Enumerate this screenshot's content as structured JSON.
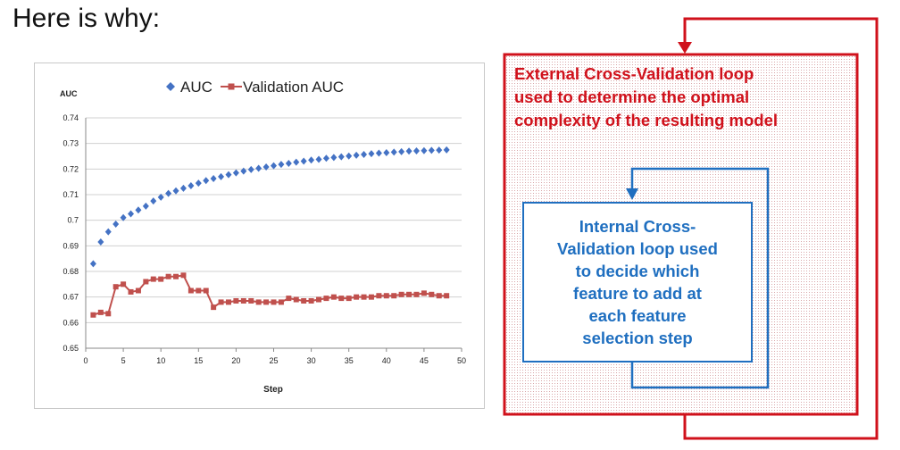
{
  "heading": "Here is why:",
  "colors": {
    "auc": "#4472c4",
    "validation": "#c0504d",
    "outer_loop": "#d0111b",
    "inner_loop": "#1f6fc0"
  },
  "chart_data": {
    "type": "line",
    "title": "",
    "xlabel": "Step",
    "ylabel": "AUC",
    "xlim": [
      0,
      50
    ],
    "ylim": [
      0.65,
      0.74
    ],
    "xticks": [
      0,
      5,
      10,
      15,
      20,
      25,
      30,
      35,
      40,
      45,
      50
    ],
    "yticks": [
      0.65,
      0.66,
      0.67,
      0.68,
      0.69,
      0.7,
      0.71,
      0.72,
      0.73,
      0.74
    ],
    "xtick_labels": [
      "0",
      "5",
      "10",
      "15",
      "20",
      "25",
      "30",
      "35",
      "40",
      "45",
      "50"
    ],
    "ytick_labels": [
      "0.65",
      "0.66",
      "0.67",
      "0.68",
      "0.69",
      "0.7",
      "0.71",
      "0.72",
      "0.73",
      "0.74"
    ],
    "grid": "horizontal",
    "legend": "top",
    "x": [
      1,
      2,
      3,
      4,
      5,
      6,
      7,
      8,
      9,
      10,
      11,
      12,
      13,
      14,
      15,
      16,
      17,
      18,
      19,
      20,
      21,
      22,
      23,
      24,
      25,
      26,
      27,
      28,
      29,
      30,
      31,
      32,
      33,
      34,
      35,
      36,
      37,
      38,
      39,
      40,
      41,
      42,
      43,
      44,
      45,
      46,
      47,
      48
    ],
    "series": [
      {
        "name": "AUC",
        "marker": "diamond",
        "line": false,
        "values": [
          0.683,
          0.6915,
          0.6955,
          0.6985,
          0.701,
          0.7025,
          0.704,
          0.7055,
          0.7075,
          0.709,
          0.7105,
          0.7115,
          0.7125,
          0.7135,
          0.7145,
          0.7155,
          0.7163,
          0.717,
          0.7178,
          0.7185,
          0.7192,
          0.7198,
          0.7203,
          0.7208,
          0.7213,
          0.7218,
          0.7222,
          0.7227,
          0.7231,
          0.7235,
          0.7238,
          0.7242,
          0.7245,
          0.7248,
          0.7251,
          0.7254,
          0.7257,
          0.726,
          0.7262,
          0.7264,
          0.7266,
          0.7268,
          0.727,
          0.7271,
          0.7272,
          0.7273,
          0.7274,
          0.7275
        ]
      },
      {
        "name": "Validation AUC",
        "marker": "square",
        "line": true,
        "values": [
          0.663,
          0.664,
          0.6635,
          0.674,
          0.675,
          0.672,
          0.6725,
          0.676,
          0.677,
          0.677,
          0.678,
          0.678,
          0.6785,
          0.6725,
          0.6725,
          0.6725,
          0.666,
          0.668,
          0.668,
          0.6685,
          0.6685,
          0.6685,
          0.668,
          0.668,
          0.668,
          0.668,
          0.6695,
          0.669,
          0.6685,
          0.6685,
          0.669,
          0.6695,
          0.67,
          0.6695,
          0.6695,
          0.67,
          0.67,
          0.67,
          0.6705,
          0.6705,
          0.6705,
          0.671,
          0.671,
          0.671,
          0.6715,
          0.671,
          0.6705,
          0.6705
        ]
      }
    ]
  },
  "diagram": {
    "outer_loop_lines": [
      "External Cross-Validation loop",
      "used to determine the optimal",
      "complexity of the resulting model"
    ],
    "inner_loop_lines": [
      "Internal Cross-",
      "Validation loop used",
      "to decide which",
      "feature to add at",
      "each feature",
      "selection step"
    ]
  }
}
